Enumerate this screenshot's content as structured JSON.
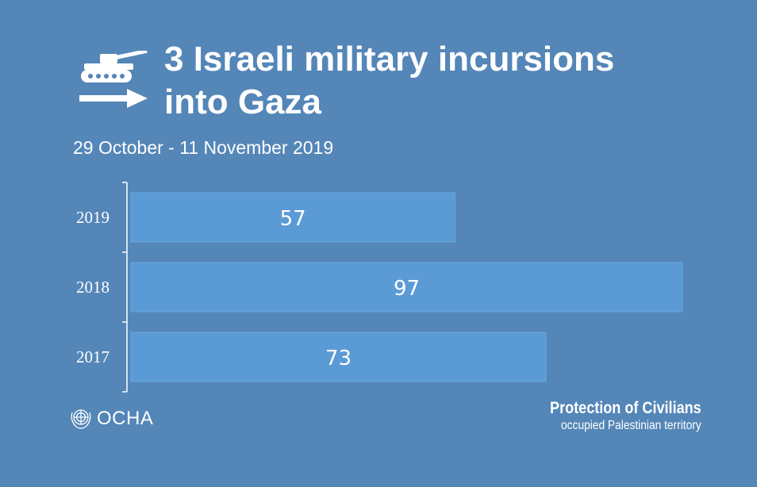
{
  "header": {
    "title_line1": "3 Israeli military incursions",
    "title_line2": "into Gaza",
    "subtitle": "29 October - 11 November 2019",
    "icon": "tank-arrow-icon"
  },
  "chart_data": {
    "type": "bar",
    "orientation": "horizontal",
    "title": "3 Israeli military incursions into Gaza",
    "subtitle": "29 October - 11 November 2019",
    "categories": [
      "2019",
      "2018",
      "2017"
    ],
    "values": [
      57,
      97,
      73
    ],
    "xlabel": "",
    "ylabel": "",
    "xlim": [
      0,
      100
    ],
    "bar_color": "#5b9bd5",
    "grid": false
  },
  "footer": {
    "org": "OCHA",
    "org_icon": "un-emblem-icon",
    "program": "Protection of Civilians",
    "territory": "occupied Palestinian territory"
  },
  "colors": {
    "background": "#5486b8",
    "bar": "#5b9bd5",
    "text": "#ffffff"
  }
}
